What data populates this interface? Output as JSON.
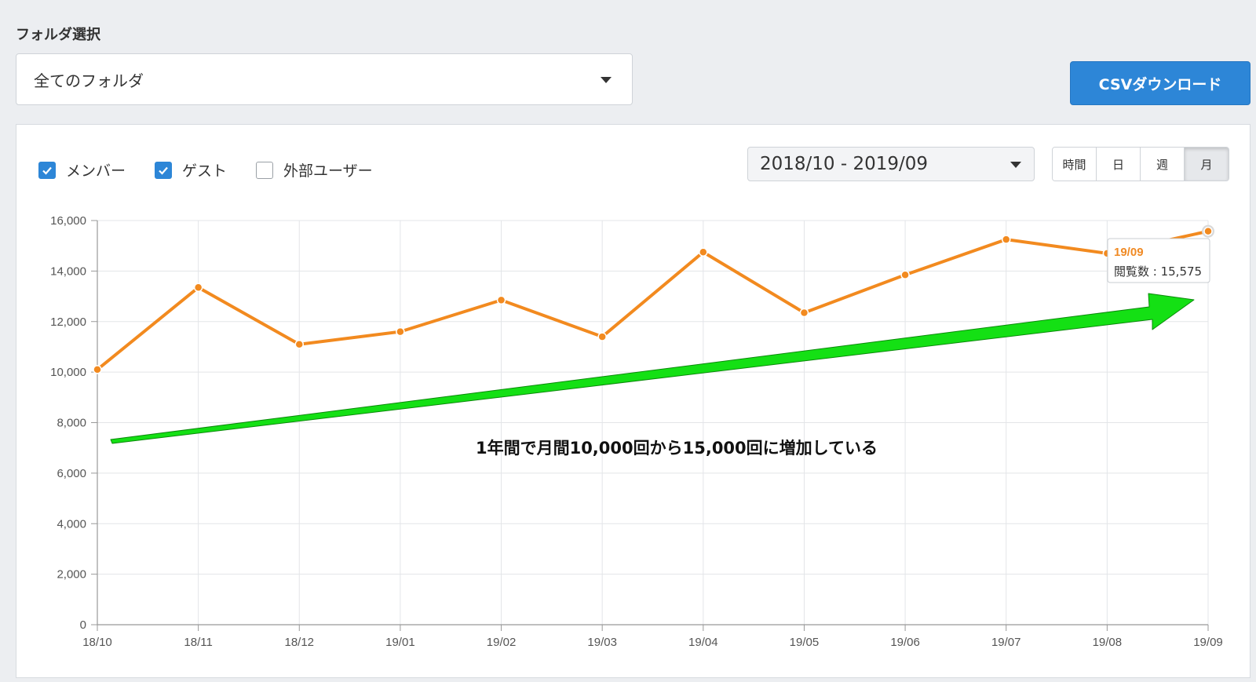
{
  "header": {
    "folder_label": "フォルダ選択",
    "folder_value": "全てのフォルダ",
    "csv_label": "CSVダウンロード"
  },
  "filters": {
    "items": [
      {
        "label": "メンバー",
        "checked": true
      },
      {
        "label": "ゲスト",
        "checked": true
      },
      {
        "label": "外部ユーザー",
        "checked": false
      }
    ],
    "range": "2018/10 - 2019/09",
    "granularity": [
      {
        "label": "時間",
        "active": false
      },
      {
        "label": "日",
        "active": false
      },
      {
        "label": "週",
        "active": false
      },
      {
        "label": "月",
        "active": true
      }
    ]
  },
  "colors": {
    "line": "#f28a1f",
    "accent": "#2d86d7",
    "arrow": "#14e014"
  },
  "chart_data": {
    "type": "line",
    "categories": [
      "18/10",
      "18/11",
      "18/12",
      "19/01",
      "19/02",
      "19/03",
      "19/04",
      "19/05",
      "19/06",
      "19/07",
      "19/08",
      "19/09"
    ],
    "values": [
      10100,
      13350,
      11100,
      11600,
      12850,
      11400,
      14750,
      12350,
      13850,
      15250,
      14700,
      15575
    ],
    "ylim": [
      0,
      16000
    ],
    "yticks": [
      "0",
      "2,000",
      "4,000",
      "6,000",
      "8,000",
      "10,000",
      "12,000",
      "14,000",
      "16,000"
    ],
    "grid": true,
    "annotation": "1年間で月間10,000回から15,000回に増加している",
    "tooltip": {
      "title": "19/09",
      "text": "閲覧数 : 15,575"
    }
  }
}
